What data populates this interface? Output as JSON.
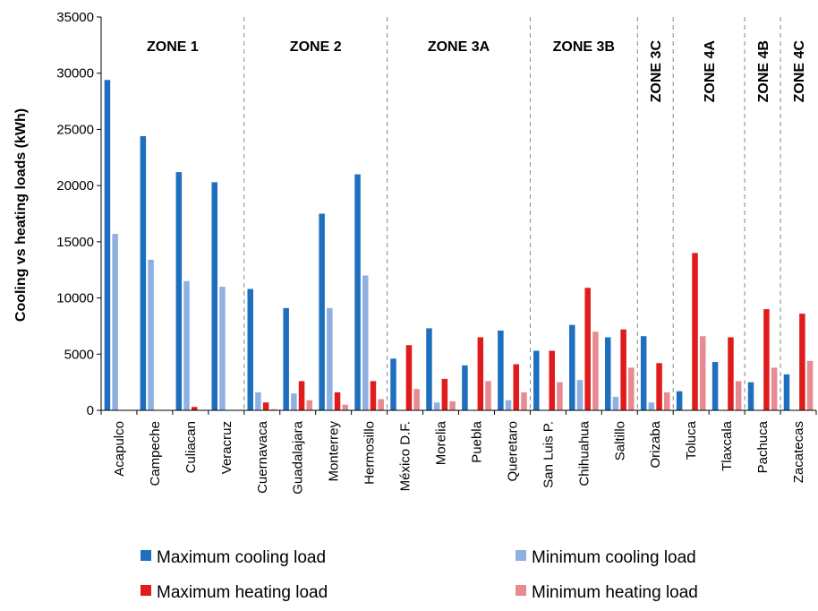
{
  "chart_data": {
    "type": "bar",
    "ylabel": "Cooling vs heating loads (kWh)",
    "ylim": [
      0,
      35000
    ],
    "yticks": [
      0,
      5000,
      10000,
      15000,
      20000,
      25000,
      30000,
      35000
    ],
    "grid": false,
    "legend_position": "bottom",
    "categories": [
      "Acapulco",
      "Campeche",
      "Culiacan",
      "Veracruz",
      "Cuernavaca",
      "Guadalajara",
      "Monterrey",
      "Hermosillo",
      "México D.F.",
      "Morelia",
      "Puebla",
      "Queretaro",
      "San Luis P.",
      "Chihuahua",
      "Saltillo",
      "Orizaba",
      "Toluca",
      "Tlaxcala",
      "Pachuca",
      "Zacatecas"
    ],
    "zones": [
      {
        "label": "ZONE 1",
        "start": 0,
        "end": 3,
        "vertical": false
      },
      {
        "label": "ZONE 2",
        "start": 4,
        "end": 7,
        "vertical": false
      },
      {
        "label": "ZONE 3A",
        "start": 8,
        "end": 11,
        "vertical": false
      },
      {
        "label": "ZONE 3B",
        "start": 12,
        "end": 14,
        "vertical": false
      },
      {
        "label": "ZONE 3C",
        "start": 15,
        "end": 15,
        "vertical": true
      },
      {
        "label": "ZONE 4A",
        "start": 16,
        "end": 17,
        "vertical": true
      },
      {
        "label": "ZONE 4B",
        "start": 18,
        "end": 18,
        "vertical": true
      },
      {
        "label": "ZONE 4C",
        "start": 19,
        "end": 19,
        "vertical": true
      }
    ],
    "series": [
      {
        "name": "Maximum cooling load",
        "color": "#1f6fbf",
        "values": [
          29400,
          24400,
          21200,
          20300,
          10800,
          9100,
          17500,
          21000,
          4600,
          7300,
          4000,
          7100,
          5300,
          7600,
          6500,
          6600,
          1700,
          4300,
          2500,
          3200
        ]
      },
      {
        "name": "Minimum cooling load",
        "color": "#8fb0e0",
        "values": [
          15700,
          13400,
          11500,
          11000,
          1600,
          1500,
          9100,
          12000,
          0,
          700,
          0,
          900,
          0,
          2700,
          1200,
          700,
          0,
          0,
          0,
          0
        ]
      },
      {
        "name": "Maximum heating load",
        "color": "#e01b1b",
        "values": [
          0,
          0,
          300,
          0,
          700,
          2600,
          1600,
          2600,
          5800,
          2800,
          6500,
          4100,
          5300,
          10900,
          7200,
          4200,
          14000,
          6500,
          9000,
          8600
        ]
      },
      {
        "name": "Minimum heating load",
        "color": "#e88a92",
        "values": [
          0,
          0,
          0,
          0,
          100,
          900,
          500,
          1000,
          1900,
          800,
          2600,
          1600,
          2500,
          7000,
          3800,
          1600,
          6600,
          2600,
          3800,
          4400
        ]
      }
    ]
  }
}
